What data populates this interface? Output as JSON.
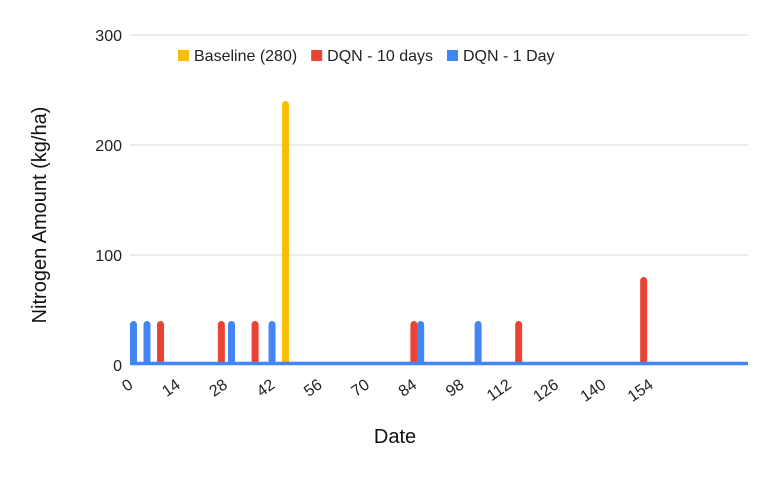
{
  "chart_data": {
    "type": "bar",
    "title": "",
    "xlabel": "Date",
    "ylabel": "Nitrogen Amount (kg/ha)",
    "xlim": [
      0,
      168
    ],
    "ylim": [
      0,
      300
    ],
    "x_ticks": [
      0,
      14,
      28,
      42,
      56,
      70,
      84,
      98,
      112,
      126,
      140,
      154
    ],
    "y_ticks": [
      0,
      100,
      200,
      300
    ],
    "grid": true,
    "legend_position": "top",
    "series": [
      {
        "name": "Baseline (280)",
        "color": "#fbbc04",
        "points": [
          {
            "x": 45,
            "y": 240
          }
        ]
      },
      {
        "name": "DQN - 10 days",
        "color": "#ea4335",
        "points": [
          {
            "x": 8,
            "y": 40
          },
          {
            "x": 26,
            "y": 40
          },
          {
            "x": 36,
            "y": 40
          },
          {
            "x": 83,
            "y": 40
          },
          {
            "x": 114,
            "y": 40
          },
          {
            "x": 151,
            "y": 80
          }
        ]
      },
      {
        "name": "DQN - 1 Day",
        "color": "#4285f4",
        "points": [
          {
            "x": 0,
            "y": 40
          },
          {
            "x": 4,
            "y": 40
          },
          {
            "x": 29,
            "y": 40
          },
          {
            "x": 41,
            "y": 40
          },
          {
            "x": 85,
            "y": 40
          },
          {
            "x": 102,
            "y": 40
          }
        ]
      }
    ]
  }
}
